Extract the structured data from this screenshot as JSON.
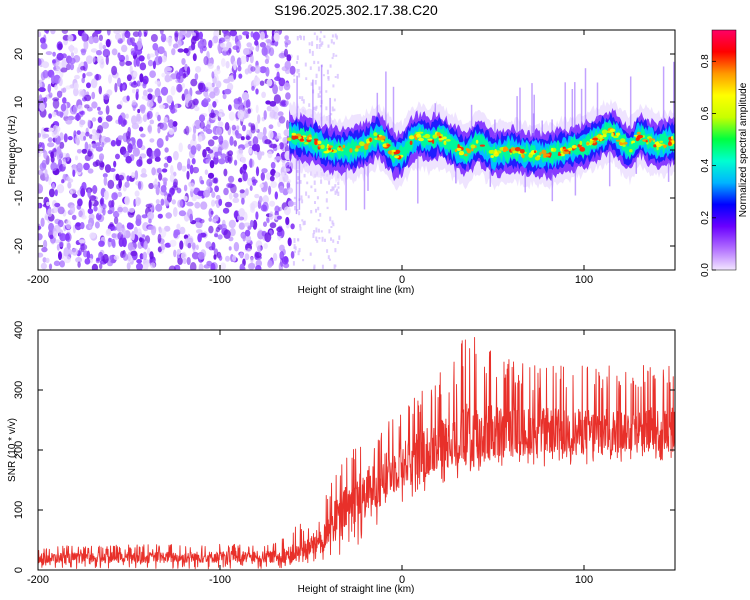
{
  "title": "S196.2025.302.17.38.C20",
  "chart_data": [
    {
      "type": "heatmap",
      "name": "spectrogram",
      "xlabel": "Height of straight line (km)",
      "ylabel": "Frequency (Hz)",
      "xlim": [
        -200,
        150
      ],
      "ylim": [
        -25,
        25
      ],
      "xticks": [
        "-200",
        "-100",
        "0",
        "100"
      ],
      "xtick_values": [
        -200,
        -100,
        0,
        100
      ],
      "yticks": [
        "20",
        "10",
        "0",
        "-10",
        "-20"
      ],
      "ytick_values": [
        20,
        10,
        0,
        -10,
        -20
      ],
      "noise_region_km": [
        -200,
        -60
      ],
      "signal_start_km": -62,
      "signal_center_track": [
        {
          "x": -62,
          "y": 3
        },
        {
          "x": -50,
          "y": 2
        },
        {
          "x": -40,
          "y": 0
        },
        {
          "x": -30,
          "y": 0
        },
        {
          "x": -20,
          "y": 1
        },
        {
          "x": -13,
          "y": 3
        },
        {
          "x": -8,
          "y": 1
        },
        {
          "x": -4,
          "y": -1
        },
        {
          "x": 0,
          "y": -1
        },
        {
          "x": 5,
          "y": 2
        },
        {
          "x": 10,
          "y": 3
        },
        {
          "x": 15,
          "y": 2
        },
        {
          "x": 20,
          "y": 3
        },
        {
          "x": 28,
          "y": 1
        },
        {
          "x": 35,
          "y": -1
        },
        {
          "x": 42,
          "y": 2
        },
        {
          "x": 50,
          "y": -1
        },
        {
          "x": 60,
          "y": 0
        },
        {
          "x": 70,
          "y": -1
        },
        {
          "x": 80,
          "y": -1
        },
        {
          "x": 90,
          "y": 0
        },
        {
          "x": 100,
          "y": 1
        },
        {
          "x": 110,
          "y": 3
        },
        {
          "x": 115,
          "y": 4
        },
        {
          "x": 120,
          "y": 2
        },
        {
          "x": 125,
          "y": 0
        },
        {
          "x": 130,
          "y": 3
        },
        {
          "x": 140,
          "y": 1
        },
        {
          "x": 150,
          "y": 2
        }
      ],
      "colorbar": {
        "label": "Normalized spectral amplitude",
        "range": [
          0,
          0.92
        ],
        "ticks": [
          "0.0",
          "0.2",
          "0.4",
          "0.6",
          "0.8"
        ],
        "tick_values": [
          0.0,
          0.2,
          0.4,
          0.6,
          0.8
        ],
        "colors": [
          "#f3e6ff",
          "#b06cff",
          "#6a00ff",
          "#0000ff",
          "#00b4ff",
          "#00ffd0",
          "#00ff40",
          "#c8ff00",
          "#ffff00",
          "#ff9900",
          "#ff0000",
          "#ff0066"
        ]
      }
    },
    {
      "type": "line",
      "name": "snr",
      "xlabel": "Height of straight line (km)",
      "ylabel": "SNR (10 * v/v)",
      "xlim": [
        -200,
        150
      ],
      "ylim": [
        0,
        400
      ],
      "xticks": [
        "-200",
        "-100",
        "0",
        "100"
      ],
      "xtick_values": [
        -200,
        -100,
        0,
        100
      ],
      "yticks": [
        "0",
        "100",
        "200",
        "300",
        "400"
      ],
      "ytick_values": [
        0,
        100,
        200,
        300,
        400
      ],
      "line_color": "#e8302a",
      "envelope_low": [
        {
          "x": -200,
          "y": 2
        },
        {
          "x": -70,
          "y": 2
        },
        {
          "x": -60,
          "y": 5
        },
        {
          "x": -40,
          "y": 10
        },
        {
          "x": -30,
          "y": 30
        },
        {
          "x": -20,
          "y": 50
        },
        {
          "x": -10,
          "y": 80
        },
        {
          "x": 0,
          "y": 110
        },
        {
          "x": 10,
          "y": 125
        },
        {
          "x": 20,
          "y": 140
        },
        {
          "x": 30,
          "y": 150
        },
        {
          "x": 50,
          "y": 160
        },
        {
          "x": 70,
          "y": 170
        },
        {
          "x": 100,
          "y": 175
        },
        {
          "x": 150,
          "y": 180
        }
      ],
      "envelope_high": [
        {
          "x": -200,
          "y": 40
        },
        {
          "x": -70,
          "y": 45
        },
        {
          "x": -60,
          "y": 70
        },
        {
          "x": -45,
          "y": 100
        },
        {
          "x": -40,
          "y": 150
        },
        {
          "x": -30,
          "y": 200
        },
        {
          "x": -20,
          "y": 230
        },
        {
          "x": -10,
          "y": 260
        },
        {
          "x": 0,
          "y": 280
        },
        {
          "x": 10,
          "y": 300
        },
        {
          "x": 20,
          "y": 330
        },
        {
          "x": 30,
          "y": 360
        },
        {
          "x": 35,
          "y": 400
        },
        {
          "x": 45,
          "y": 395
        },
        {
          "x": 60,
          "y": 350
        },
        {
          "x": 80,
          "y": 340
        },
        {
          "x": 100,
          "y": 345
        },
        {
          "x": 120,
          "y": 340
        },
        {
          "x": 150,
          "y": 350
        }
      ],
      "baseline_mean": [
        {
          "x": -200,
          "y": 20
        },
        {
          "x": -70,
          "y": 22
        },
        {
          "x": -55,
          "y": 30
        },
        {
          "x": -45,
          "y": 50
        },
        {
          "x": -35,
          "y": 90
        },
        {
          "x": -25,
          "y": 120
        },
        {
          "x": -15,
          "y": 140
        },
        {
          "x": -5,
          "y": 165
        },
        {
          "x": 5,
          "y": 185
        },
        {
          "x": 15,
          "y": 200
        },
        {
          "x": 25,
          "y": 215
        },
        {
          "x": 40,
          "y": 225
        },
        {
          "x": 60,
          "y": 230
        },
        {
          "x": 80,
          "y": 232
        },
        {
          "x": 100,
          "y": 230
        },
        {
          "x": 150,
          "y": 235
        }
      ]
    }
  ]
}
